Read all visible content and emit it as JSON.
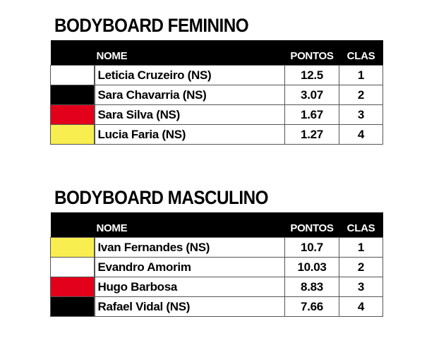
{
  "columns": {
    "name": "NOME",
    "points": "PONTOS",
    "rank": "CLAS"
  },
  "colors": {
    "white": "#ffffff",
    "black": "#000000",
    "red": "#e2001a",
    "yellow": "#f8ee50"
  },
  "tables": [
    {
      "title": "BODYBOARD FEMININO",
      "rows": [
        {
          "color": "#ffffff",
          "name": "Leticia Cruzeiro (NS)",
          "points": "12.5",
          "rank": "1"
        },
        {
          "color": "#000000",
          "name": "Sara Chavarria (NS)",
          "points": "3.07",
          "rank": "2"
        },
        {
          "color": "#e2001a",
          "name": "Sara Silva (NS)",
          "points": "1.67",
          "rank": "3"
        },
        {
          "color": "#f8ee50",
          "name": "Lucia Faria (NS)",
          "points": "1.27",
          "rank": "4"
        }
      ]
    },
    {
      "title": "BODYBOARD MASCULINO",
      "rows": [
        {
          "color": "#f8ee50",
          "name": "Ivan Fernandes (NS)",
          "points": "10.7",
          "rank": "1"
        },
        {
          "color": "#ffffff",
          "name": "Evandro Amorim",
          "points": "10.03",
          "rank": "2"
        },
        {
          "color": "#e2001a",
          "name": "Hugo Barbosa",
          "points": "8.83",
          "rank": "3"
        },
        {
          "color": "#000000",
          "name": "Rafael Vidal (NS)",
          "points": "7.66",
          "rank": "4"
        }
      ]
    }
  ]
}
